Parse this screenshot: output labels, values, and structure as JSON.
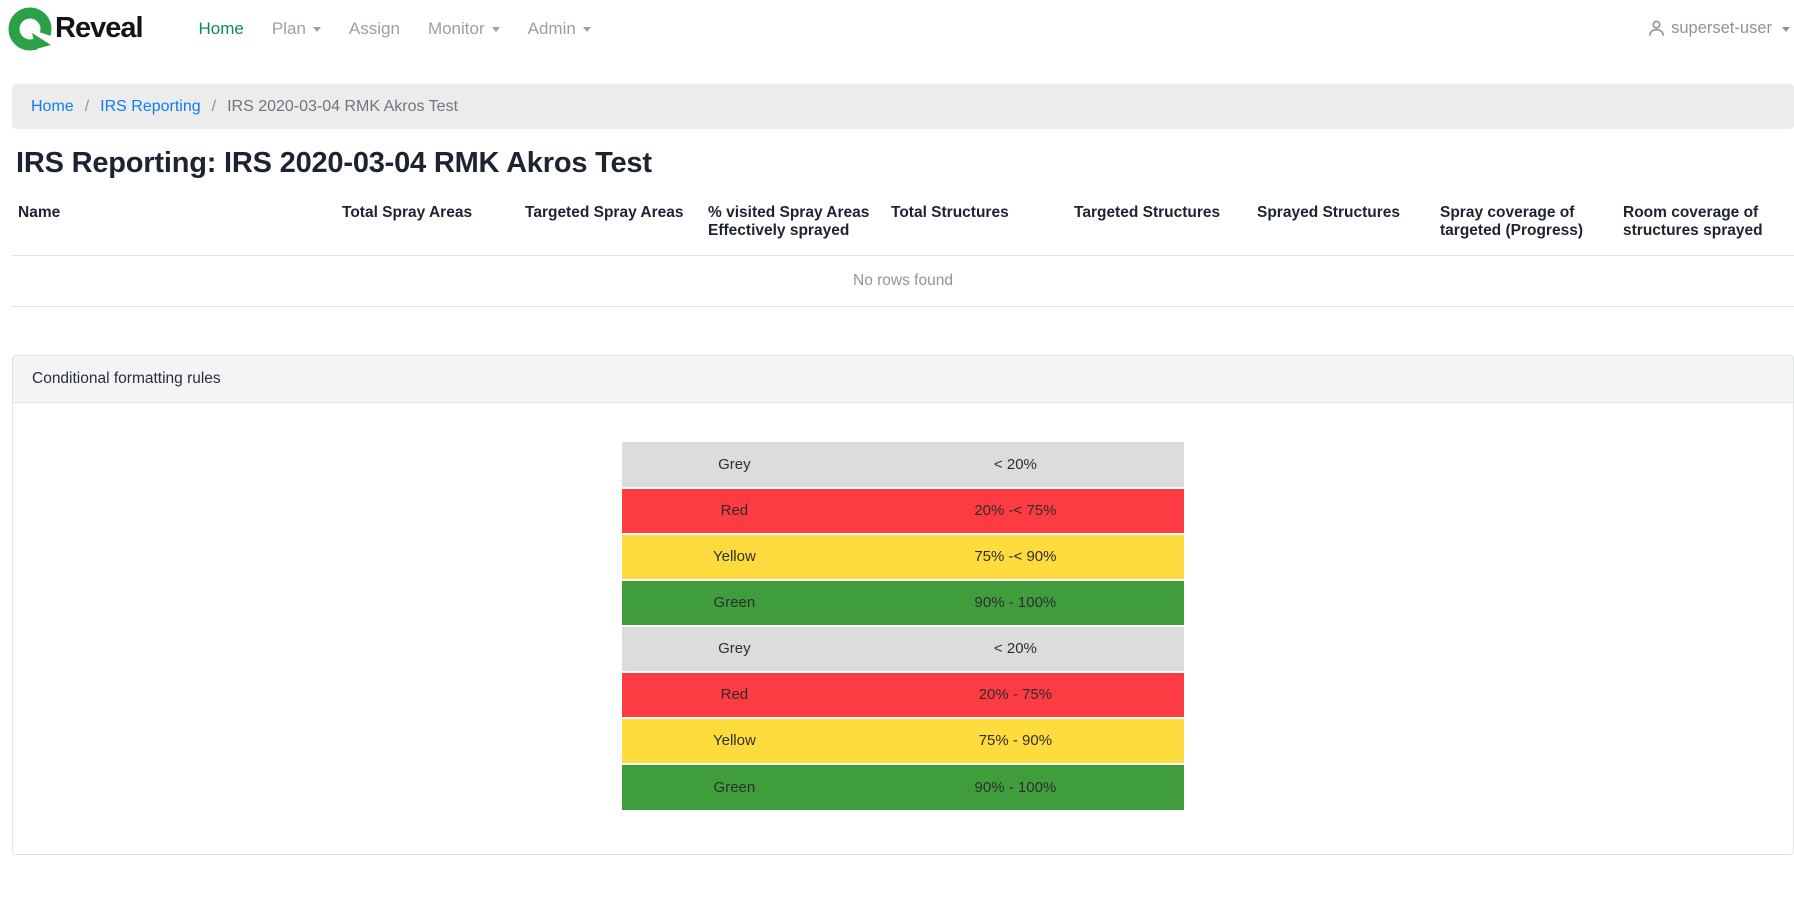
{
  "nav": {
    "brand": "Reveal",
    "items": [
      {
        "label": "Home",
        "active": true,
        "has_caret": false
      },
      {
        "label": "Plan",
        "active": false,
        "has_caret": true
      },
      {
        "label": "Assign",
        "active": false,
        "has_caret": false
      },
      {
        "label": "Monitor",
        "active": false,
        "has_caret": true
      },
      {
        "label": "Admin",
        "active": false,
        "has_caret": true
      }
    ],
    "user_label": "superset-user"
  },
  "breadcrumb": {
    "separator": "/",
    "items": [
      {
        "label": "Home",
        "is_link": true
      },
      {
        "label": "IRS Reporting",
        "is_link": true
      },
      {
        "label": "IRS 2020-03-04 RMK Akros Test",
        "is_link": false
      }
    ]
  },
  "page": {
    "title": "IRS Reporting: IRS 2020-03-04 RMK Akros Test"
  },
  "report_table": {
    "columns": [
      "Name",
      "Total Spray Areas",
      "Targeted Spray Areas",
      "% visited Spray Areas Effectively sprayed",
      "Total Structures",
      "Targeted Structures",
      "Sprayed Structures",
      "Spray coverage of targeted (Progress)",
      "Room coverage of structures sprayed"
    ],
    "empty_message": "No rows found"
  },
  "panel": {
    "title": "Conditional formatting rules",
    "legend_rows": [
      {
        "label": "Grey",
        "range": "< 20%",
        "color": "#dcdcdc"
      },
      {
        "label": "Red",
        "range": "20% -< 75%",
        "color": "#fd3b43"
      },
      {
        "label": "Yellow",
        "range": "75% -< 90%",
        "color": "#fedc3d"
      },
      {
        "label": "Green",
        "range": "90% - 100%",
        "color": "#3f9d3c"
      },
      {
        "label": "Grey",
        "range": "< 20%",
        "color": "#dcdcdc"
      },
      {
        "label": "Red",
        "range": "20% - 75%",
        "color": "#fd3b43"
      },
      {
        "label": "Yellow",
        "range": "75% - 90%",
        "color": "#fedc3d"
      },
      {
        "label": "Green",
        "range": "90% - 100%",
        "color": "#3f9d3c"
      }
    ]
  },
  "colors": {
    "brand_green": "#2aa147",
    "active_nav_green": "#0e8a62",
    "link_blue": "#0d7df2",
    "legend_grey": "#dcdcdc",
    "legend_red": "#fd3b43",
    "legend_yellow": "#fedc3d",
    "legend_green": "#3f9d3c"
  }
}
